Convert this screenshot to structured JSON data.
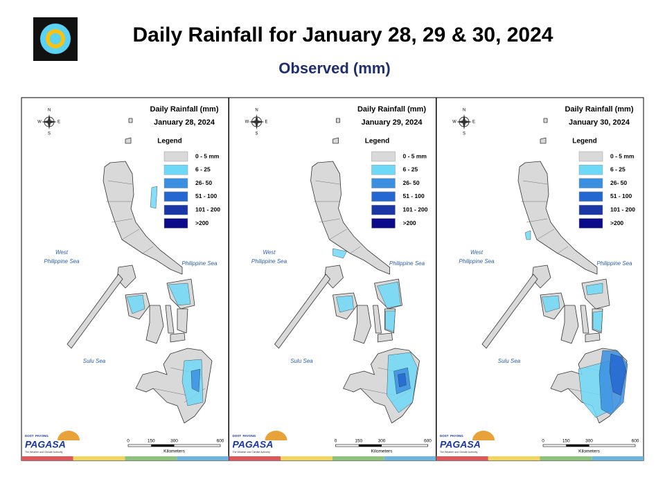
{
  "header": {
    "title": "Daily Rainfall for January 28, 29 & 30, 2024",
    "subtitle": "Observed (mm)"
  },
  "map_common": {
    "heading": "Daily Rainfall (mm)",
    "legend_title": "Legend",
    "legend": [
      {
        "label": "0 - 5 mm",
        "color": "#d9d9d9"
      },
      {
        "label": "6 - 25",
        "color": "#6ed8f7"
      },
      {
        "label": "26- 50",
        "color": "#3a8fe0"
      },
      {
        "label": "51 - 100",
        "color": "#2567d0"
      },
      {
        "label": "101 - 200",
        "color": "#1a37a5"
      },
      {
        "label": ">200",
        "color": "#0b0b8a"
      }
    ],
    "compass": [
      "N",
      "E",
      "S",
      "W"
    ],
    "seas": {
      "west": [
        "West",
        "Philippine Sea"
      ],
      "east": "Philippine Sea",
      "sulu": "Sulu Sea"
    },
    "scale": {
      "ticks": [
        0,
        150,
        300,
        600
      ],
      "unit": "Kilometers"
    },
    "logo": {
      "small": "DOST",
      "payong": "PAYONG",
      "brand": "PAGASA",
      "tagline": "The Weather and Climate Authority"
    }
  },
  "panels": [
    {
      "date": "January 28, 2024"
    },
    {
      "date": "January 29, 2024"
    },
    {
      "date": "January 30, 2024"
    }
  ]
}
